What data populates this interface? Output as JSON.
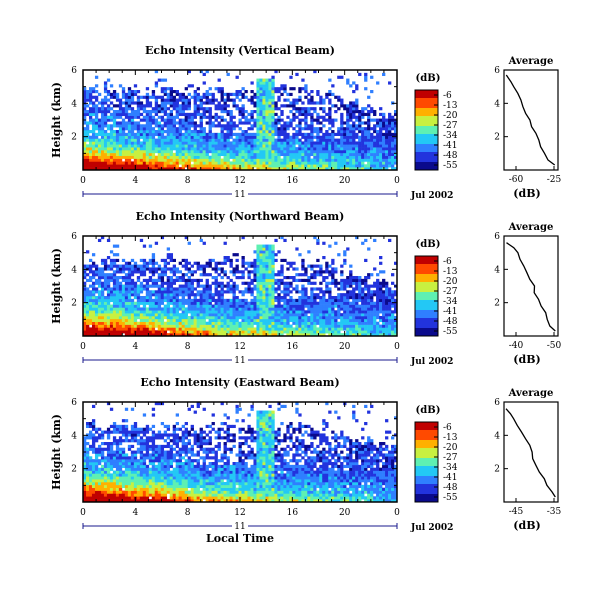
{
  "chart_data": [
    {
      "type": "heatmap",
      "title": "Echo Intensity (Vertical Beam)",
      "ylabel": "Height (km)",
      "yticks": [
        "6",
        "4",
        "2"
      ],
      "xticks": [
        "0",
        "4",
        "8",
        "12",
        "16",
        "20",
        "0"
      ],
      "day_label": "11",
      "date_label": "Jul 2002",
      "ylim": [
        0,
        6
      ],
      "xlim_hours": [
        0,
        24
      ],
      "colorbar": {
        "unit": "(dB)",
        "ticks": [
          "-6",
          "-13",
          "-20",
          "-27",
          "-34",
          "-41",
          "-48",
          "-55"
        ]
      },
      "top_height_profile_km": [
        5.0,
        5.0,
        4.9,
        4.9,
        4.8,
        4.8,
        4.9,
        4.8,
        4.8,
        4.8,
        4.9,
        4.9,
        4.7,
        4.8,
        4.9,
        5.0,
        5.0,
        4.8,
        4.6,
        4.4,
        4.2,
        4.0,
        3.6,
        3.4
      ],
      "average": {
        "title": "Average",
        "xlabel": "(dB)",
        "xticks": [
          "-60",
          "-25"
        ],
        "yticks": [
          "6",
          "4",
          "2"
        ],
        "height_km": [
          5.7,
          5.3,
          5.0,
          4.6,
          4.2,
          3.8,
          3.4,
          3.0,
          2.6,
          2.2,
          1.8,
          1.4,
          1.0,
          0.6,
          0.3
        ],
        "db": [
          -58,
          -56,
          -54,
          -51,
          -49,
          -47,
          -45,
          -43,
          -41,
          -39,
          -37,
          -35,
          -33,
          -31,
          -26
        ]
      }
    },
    {
      "type": "heatmap",
      "title": "Echo Intensity (Northward Beam)",
      "ylabel": "Height (km)",
      "yticks": [
        "6",
        "4",
        "2"
      ],
      "xticks": [
        "0",
        "4",
        "8",
        "12",
        "16",
        "20",
        "0"
      ],
      "day_label": "11",
      "date_label": "Jul 2002",
      "ylim": [
        0,
        6
      ],
      "xlim_hours": [
        0,
        24
      ],
      "colorbar": {
        "unit": "(dB)",
        "ticks": [
          "-6",
          "-13",
          "-20",
          "-27",
          "-34",
          "-41",
          "-48",
          "-55"
        ]
      },
      "top_height_profile_km": [
        4.5,
        4.6,
        4.6,
        4.6,
        4.5,
        4.5,
        4.6,
        4.5,
        4.4,
        4.5,
        4.6,
        4.7,
        4.6,
        4.6,
        4.7,
        4.7,
        4.5,
        4.4,
        4.2,
        4.0,
        3.8,
        3.6,
        3.4,
        3.2
      ],
      "average": {
        "title": "Average",
        "xlabel": "(dB)",
        "xticks": [
          "-40",
          "-50"
        ],
        "yticks": [
          "6",
          "4",
          "2"
        ],
        "height_km": [
          5.6,
          5.3,
          5.0,
          4.6,
          4.2,
          3.8,
          3.4,
          3.0,
          2.6,
          2.2,
          1.8,
          1.4,
          1.0,
          0.6,
          0.3
        ],
        "db": [
          -52,
          -48,
          -46,
          -44,
          -42,
          -40,
          -38,
          -36,
          -35,
          -33,
          -31,
          -29,
          -28,
          -26,
          -23
        ]
      }
    },
    {
      "type": "heatmap",
      "title": "Echo Intensity (Eastward Beam)",
      "ylabel": "Height (km)",
      "yticks": [
        "6",
        "4",
        "2"
      ],
      "xticks": [
        "0",
        "4",
        "8",
        "12",
        "16",
        "20",
        "0"
      ],
      "day_label": "11",
      "date_label": "Jul 2002",
      "xlabel": "Local Time",
      "ylim": [
        0,
        6
      ],
      "xlim_hours": [
        0,
        24
      ],
      "colorbar": {
        "unit": "(dB)",
        "ticks": [
          "-6",
          "-13",
          "-20",
          "-27",
          "-34",
          "-41",
          "-48",
          "-55"
        ]
      },
      "top_height_profile_km": [
        4.6,
        4.6,
        4.7,
        4.7,
        4.6,
        4.5,
        4.6,
        4.6,
        4.5,
        4.6,
        4.7,
        4.7,
        4.6,
        4.7,
        4.8,
        4.7,
        4.6,
        4.4,
        4.3,
        4.1,
        3.9,
        3.7,
        3.5,
        3.3
      ],
      "average": {
        "title": "Average",
        "xlabel": "(dB)",
        "xticks": [
          "-45",
          "-35"
        ],
        "yticks": [
          "6",
          "4",
          "2"
        ],
        "height_km": [
          5.6,
          5.3,
          5.0,
          4.6,
          4.2,
          3.8,
          3.4,
          3.0,
          2.6,
          2.2,
          1.8,
          1.4,
          1.0,
          0.6,
          0.3
        ],
        "db": [
          -47,
          -46,
          -45,
          -44,
          -43,
          -42,
          -41,
          -40,
          -40,
          -39,
          -38,
          -37,
          -36,
          -35,
          -34
        ]
      }
    }
  ],
  "colors": {
    "scale": [
      "#0a0a8c",
      "#2233dd",
      "#2f7fff",
      "#23c8f5",
      "#5ef0b2",
      "#c8f040",
      "#ffb000",
      "#ff4a00",
      "#c00000"
    ]
  }
}
